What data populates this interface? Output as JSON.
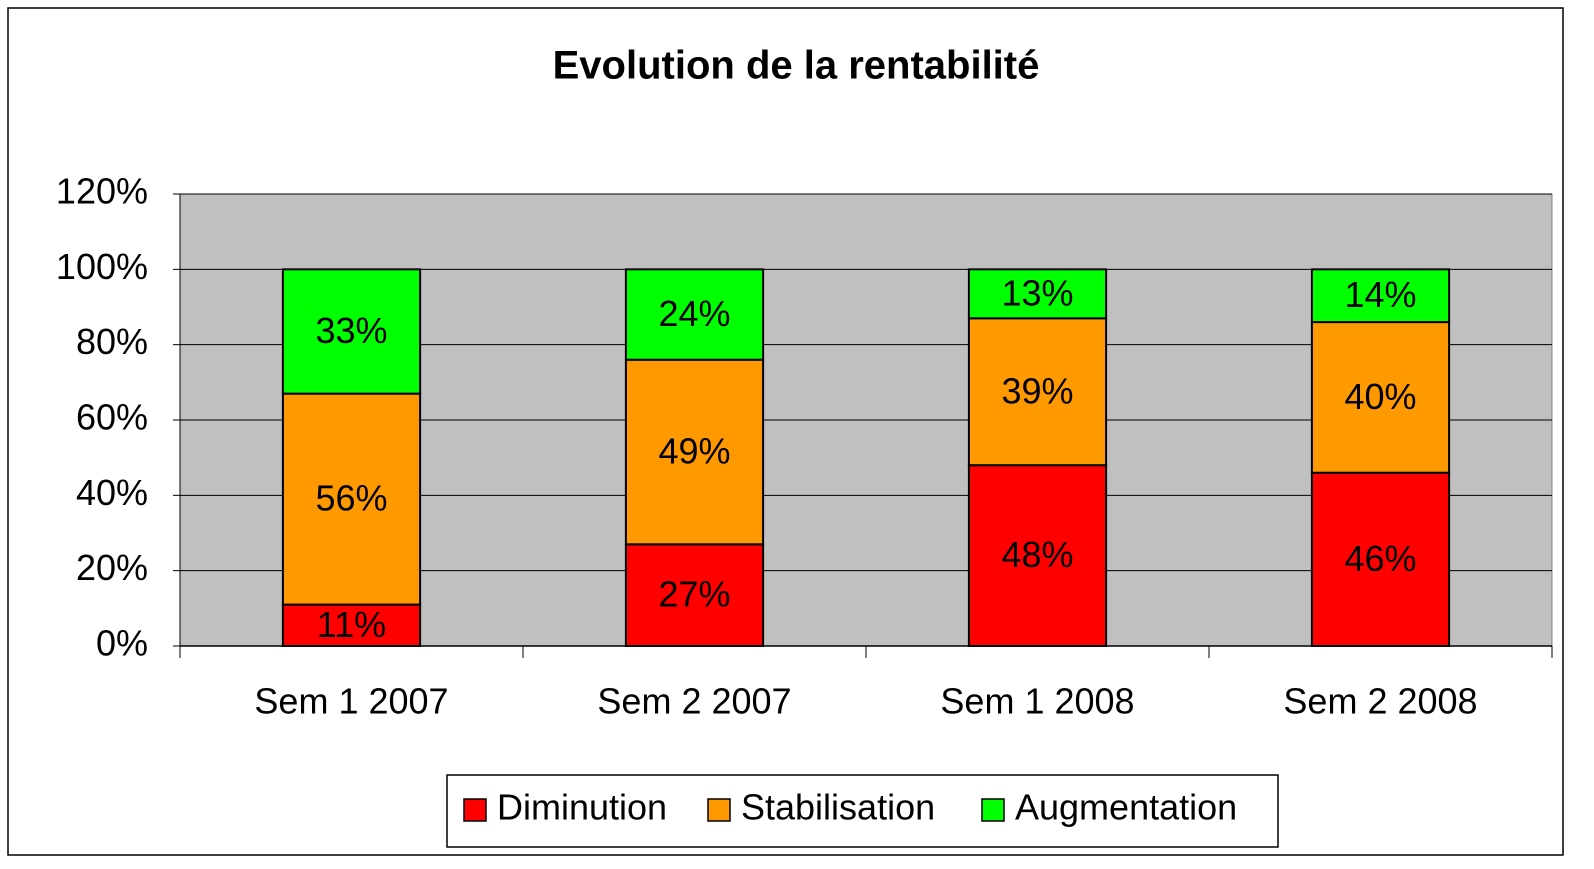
{
  "chart_data": {
    "type": "stacked_bar",
    "title": "Evolution de la rentabilité",
    "categories": [
      "Sem 1 2007",
      "Sem 2 2007",
      "Sem 1 2008",
      "Sem 2 2008"
    ],
    "series": [
      {
        "name": "Diminution",
        "color": "#ff0000",
        "values": [
          11,
          27,
          48,
          46
        ],
        "value_labels": [
          "11%",
          "27%",
          "48%",
          "46%"
        ]
      },
      {
        "name": "Stabilisation",
        "color": "#ff9900",
        "values": [
          56,
          49,
          39,
          40
        ],
        "value_labels": [
          "56%",
          "49%",
          "39%",
          "40%"
        ]
      },
      {
        "name": "Augmentation",
        "color": "#00ff00",
        "values": [
          33,
          24,
          13,
          14
        ],
        "value_labels": [
          "33%",
          "24%",
          "13%",
          "14%"
        ]
      }
    ],
    "ylim": [
      0,
      120
    ],
    "yticks": [
      {
        "value": 0,
        "label": "0%"
      },
      {
        "value": 20,
        "label": "20%"
      },
      {
        "value": 40,
        "label": "40%"
      },
      {
        "value": 60,
        "label": "60%"
      },
      {
        "value": 80,
        "label": "80%"
      },
      {
        "value": 100,
        "label": "100%"
      },
      {
        "value": 120,
        "label": "120%"
      }
    ],
    "grid": true,
    "plot_background": "#c0c0c0",
    "legend": "bottom"
  }
}
